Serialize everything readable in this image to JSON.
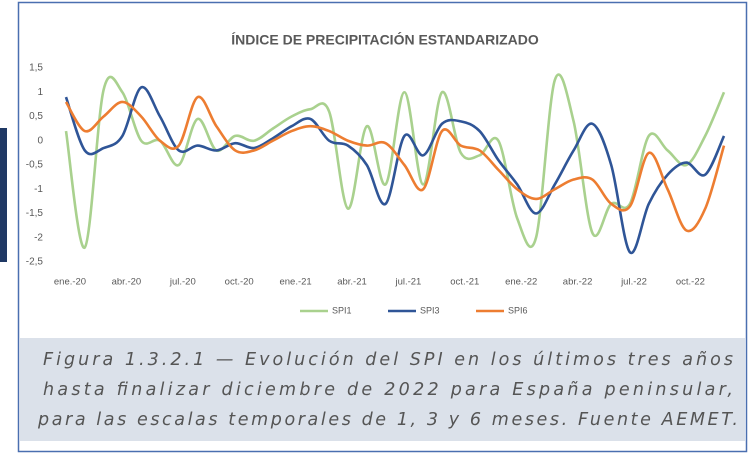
{
  "chart_data": {
    "type": "line",
    "title": "ÍNDICE DE PRECIPITACIÓN ESTANDARIZADO",
    "categories": [
      "ene.-20",
      null,
      null,
      "abr.-20",
      null,
      null,
      "jul.-20",
      null,
      null,
      "oct.-20",
      null,
      null,
      "ene.-21",
      null,
      null,
      "abr.-21",
      null,
      null,
      "jul.-21",
      null,
      null,
      "oct.-21",
      null,
      null,
      "ene.-22",
      null,
      null,
      "abr.-22",
      null,
      null,
      "jul.-22",
      null,
      null,
      "oct.-22",
      null,
      null
    ],
    "series": [
      {
        "name": "SPI1",
        "color": "#a9d18e",
        "values": [
          0.2,
          -2.2,
          1.05,
          1.0,
          0.0,
          0.0,
          -0.5,
          0.45,
          -0.2,
          0.1,
          0.0,
          0.25,
          0.5,
          0.65,
          0.6,
          -1.4,
          0.3,
          -0.9,
          1.0,
          -0.9,
          1.0,
          -0.25,
          -0.3,
          0.0,
          -1.6,
          -2.0,
          1.25,
          0.4,
          -1.9,
          -1.3,
          -1.3,
          0.1,
          -0.2,
          -0.5,
          0.1,
          1.0
        ]
      },
      {
        "name": "SPI3",
        "color": "#2f5597",
        "values": [
          0.9,
          -0.2,
          -0.15,
          0.1,
          1.1,
          0.5,
          -0.2,
          -0.1,
          -0.2,
          -0.05,
          -0.15,
          0.05,
          0.3,
          0.45,
          0.0,
          -0.1,
          -0.5,
          -1.3,
          0.1,
          -0.3,
          0.35,
          0.4,
          0.2,
          -0.4,
          -0.9,
          -1.5,
          -0.9,
          -0.2,
          0.35,
          -0.5,
          -2.3,
          -1.3,
          -0.7,
          -0.45,
          -0.7,
          0.1
        ]
      },
      {
        "name": "SPI6",
        "color": "#ed7d31",
        "values": [
          0.8,
          0.2,
          0.5,
          0.8,
          0.5,
          0.0,
          -0.1,
          0.9,
          0.3,
          -0.2,
          -0.2,
          0.0,
          0.2,
          0.3,
          0.2,
          0.0,
          -0.1,
          -0.05,
          -0.5,
          -1.0,
          0.2,
          -0.1,
          -0.2,
          -0.6,
          -1.0,
          -1.2,
          -1.0,
          -0.8,
          -0.8,
          -1.3,
          -1.35,
          -0.25,
          -1.0,
          -1.85,
          -1.4,
          -0.1
        ]
      }
    ],
    "ylim": [
      -2.5,
      1.5
    ],
    "yticks": [
      {
        "value": 1.5,
        "label": "1,5"
      },
      1,
      {
        "value": 0.5,
        "label": "0,5"
      },
      0,
      {
        "value": -0.5,
        "label": "-0,5"
      },
      -1,
      {
        "value": -1.5,
        "label": "-1,5"
      },
      -2,
      {
        "value": -2.5,
        "label": "-2,5"
      }
    ],
    "grid": false,
    "legend": "bottom",
    "caption_lines": [
      "Figura 1.3.2.1 — Evolución del SPI en los últimos tres años",
      "hasta finalizar diciembre de 2022 para España peninsular,",
      "para las escalas temporales de 1, 3 y 6 meses. Fuente AEMET."
    ]
  }
}
